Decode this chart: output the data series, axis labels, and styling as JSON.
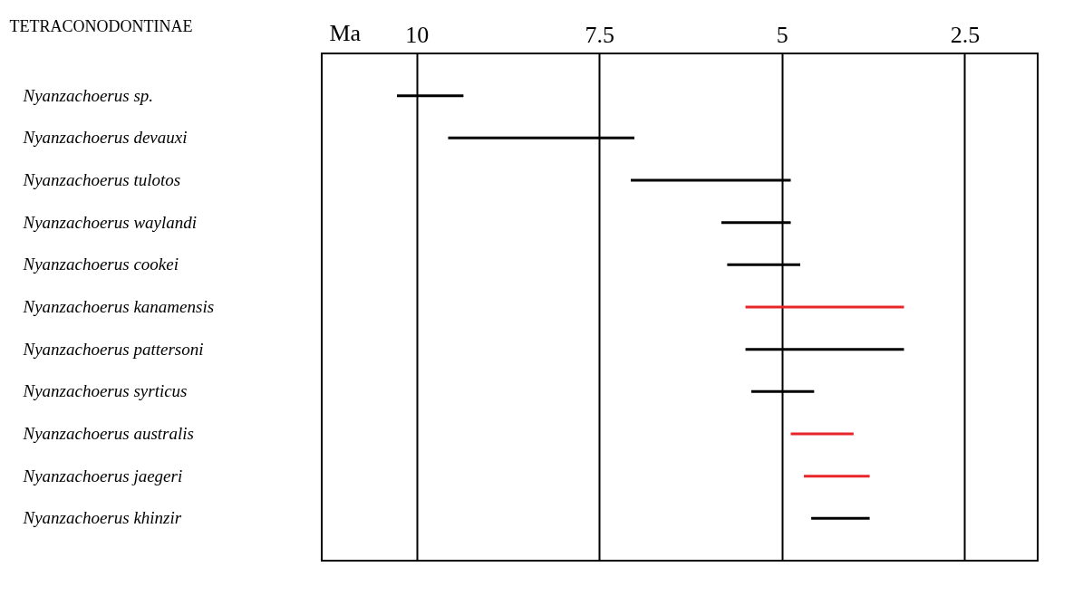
{
  "chart_data": {
    "type": "bar",
    "orientation": "horizontal",
    "xlabel": "Ma",
    "ylabel": "TETRACONODONTINAE",
    "categories": [
      "Nyanzachoerus sp.",
      "Nyanzachoerus devauxi",
      "Nyanzachoerus tulotos",
      "Nyanzachoerus waylandi",
      "Nyanzachoerus cookei",
      "Nyanzachoerus kanamensis",
      "Nyanzachoerus pattersoni",
      "Nyanzachoerus syrticus",
      "Nyanzachoerus australis",
      "Nyanzachoerus  jaegeri",
      "Nyanzachoerus khinzir"
    ],
    "base": [
      9.36,
      7.02,
      4.88,
      4.88,
      4.75,
      3.33,
      3.33,
      4.56,
      4.02,
      3.8,
      3.8
    ],
    "values": [
      0.91,
      2.55,
      2.19,
      0.95,
      1.0,
      2.17,
      2.17,
      0.86,
      0.86,
      0.9,
      0.8
    ],
    "colors": [
      "#000000",
      "#000000",
      "#000000",
      "#000000",
      "#000000",
      "#e8262a",
      "#000000",
      "#000000",
      "#e8262a",
      "#e8262a",
      "#000000"
    ],
    "xlim": [
      11.3,
      1.5
    ],
    "xticks": [
      10,
      7.5,
      5,
      2.5
    ],
    "grid": "x"
  }
}
